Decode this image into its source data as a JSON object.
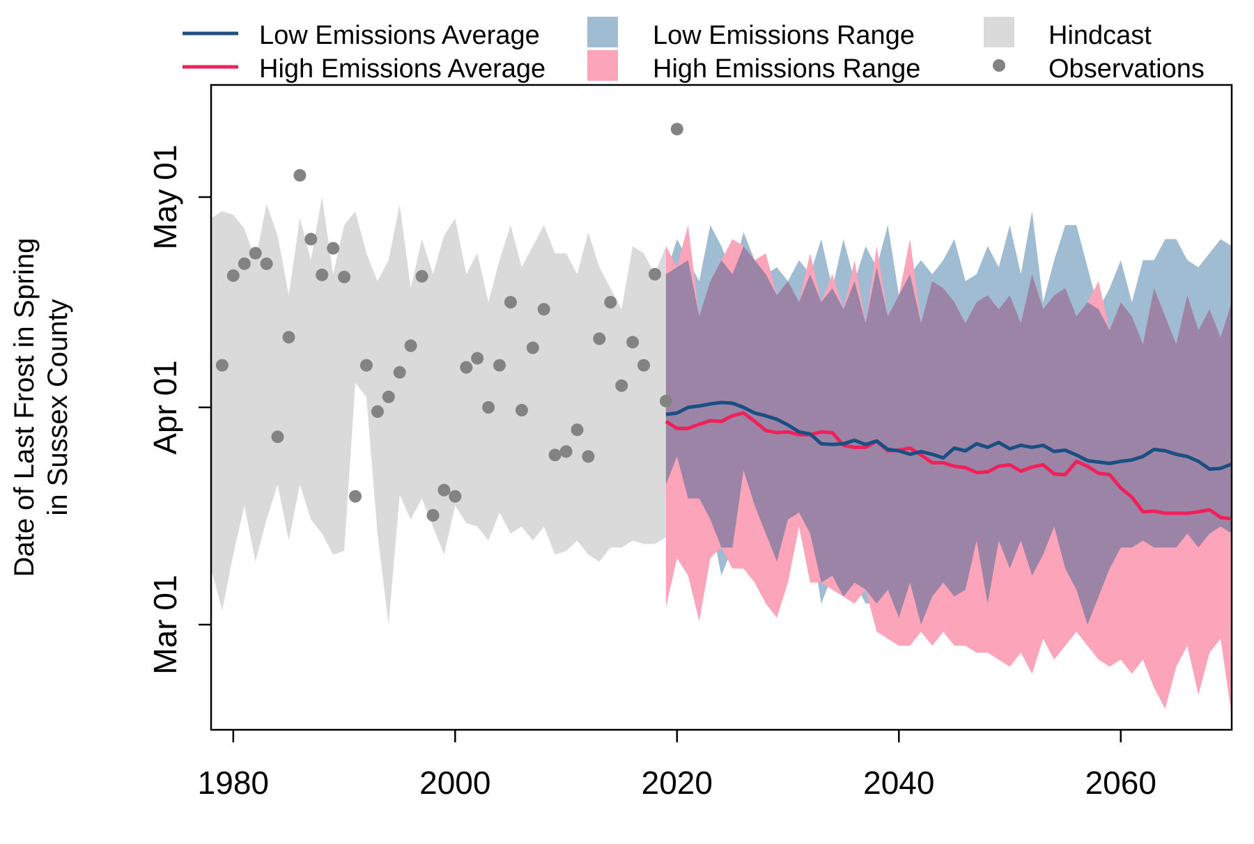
{
  "chart_data": {
    "type": "area",
    "ylabel_line1": "Date of Last Frost in Spring",
    "ylabel_line2": "in Sussex County",
    "xlabel": "",
    "xlim": [
      1978,
      2070
    ],
    "x_ticks": [
      1980,
      2000,
      2020,
      2040,
      2060
    ],
    "ylim_day_of_year": [
      45,
      137
    ],
    "y_ticks": [
      {
        "day": 60,
        "label": "Mar 01"
      },
      {
        "day": 91,
        "label": "Apr 01"
      },
      {
        "day": 121,
        "label": "May 01"
      }
    ],
    "grid": false,
    "legend_position": "top, outside",
    "legend": [
      {
        "key": "low_avg",
        "label": "Low Emissions Average",
        "kind": "line",
        "color": "#1a4f84"
      },
      {
        "key": "high_avg",
        "label": "High Emissions Average",
        "kind": "line",
        "color": "#f0215a"
      },
      {
        "key": "low_range",
        "label": "Low Emissions Range",
        "kind": "area",
        "color": "#9fbcd2"
      },
      {
        "key": "high_range",
        "label": "High Emissions Range",
        "kind": "area",
        "color": "#fca4b9"
      },
      {
        "key": "hindcast",
        "label": "Hindcast",
        "kind": "area",
        "color": "#dadada"
      },
      {
        "key": "observations",
        "label": "Observations",
        "kind": "point",
        "color": "#838383"
      }
    ],
    "colors": {
      "low_avg": "#1a4f84",
      "high_avg": "#f0215a",
      "low_range": "#9fbcd2",
      "high_range": "#fca4b9",
      "overlap": "#9c84a6",
      "hindcast": "#dadada",
      "observations": "#838383"
    },
    "hindcast": {
      "x": [
        1978,
        1979,
        1980,
        1981,
        1982,
        1983,
        1984,
        1985,
        1986,
        1987,
        1988,
        1989,
        1990,
        1991,
        1992,
        1993,
        1994,
        1995,
        1996,
        1997,
        1998,
        1999,
        2000,
        2001,
        2002,
        2003,
        2004,
        2005,
        2006,
        2007,
        2008,
        2009,
        2010,
        2011,
        2012,
        2013,
        2014,
        2015,
        2016,
        2017,
        2018,
        2019
      ],
      "upper": [
        118,
        119,
        118.5,
        116.5,
        112,
        120,
        115.5,
        107,
        118,
        112,
        121,
        110,
        117,
        119,
        113,
        109,
        112,
        120,
        108,
        115,
        110,
        115.5,
        118,
        110,
        113,
        106,
        112,
        117,
        111,
        114,
        117,
        113,
        113,
        110,
        116,
        111,
        108,
        105,
        114,
        113,
        110,
        114
      ],
      "lower": [
        68,
        62,
        70,
        77,
        69,
        75,
        80,
        72,
        80,
        75,
        73,
        70,
        70.5,
        94.5,
        92.5,
        73,
        60,
        78.5,
        75,
        78,
        74,
        70,
        77,
        74.5,
        74,
        72,
        76,
        73,
        74,
        72,
        74,
        70,
        70.5,
        72,
        70,
        69,
        71,
        71,
        72,
        71.5,
        71.5,
        72.5
      ]
    },
    "low_range": {
      "x": [
        2019,
        2020,
        2021,
        2022,
        2023,
        2024,
        2025,
        2026,
        2027,
        2028,
        2029,
        2030,
        2031,
        2032,
        2033,
        2034,
        2035,
        2036,
        2037,
        2038,
        2039,
        2040,
        2041,
        2042,
        2043,
        2044,
        2045,
        2046,
        2047,
        2048,
        2049,
        2050,
        2051,
        2052,
        2053,
        2054,
        2055,
        2056,
        2057,
        2058,
        2059,
        2060,
        2061,
        2062,
        2063,
        2064,
        2065,
        2066,
        2067,
        2068,
        2069,
        2070
      ],
      "upper": [
        110,
        115,
        112,
        109,
        117,
        114,
        110,
        116,
        112,
        110,
        111,
        109,
        112,
        110,
        115,
        108,
        115,
        109,
        114,
        111,
        117,
        107,
        110,
        112,
        110,
        112,
        115,
        109,
        110,
        114,
        111,
        117,
        110,
        119,
        106,
        112,
        117,
        117,
        111,
        105,
        108,
        112,
        106,
        112,
        112,
        115,
        115,
        112,
        111,
        113,
        115,
        114
      ],
      "lower": [
        80,
        84,
        78,
        78,
        75,
        67,
        71,
        82,
        77,
        73,
        69,
        75,
        76,
        73,
        63,
        67,
        64,
        66,
        63,
        63,
        65,
        61,
        66,
        60,
        64,
        66,
        64,
        65,
        72,
        63,
        72,
        68,
        72,
        67,
        70,
        74,
        68,
        65,
        60,
        64,
        68,
        71,
        71,
        72,
        71,
        71,
        71,
        73,
        71,
        73,
        74,
        73
      ]
    },
    "high_range": {
      "x": [
        2019,
        2020,
        2021,
        2022,
        2023,
        2024,
        2025,
        2026,
        2027,
        2028,
        2029,
        2030,
        2031,
        2032,
        2033,
        2034,
        2035,
        2036,
        2037,
        2038,
        2039,
        2040,
        2041,
        2042,
        2043,
        2044,
        2045,
        2046,
        2047,
        2048,
        2049,
        2050,
        2051,
        2052,
        2053,
        2054,
        2055,
        2056,
        2057,
        2058,
        2059,
        2060,
        2061,
        2062,
        2063,
        2064,
        2065,
        2066,
        2067,
        2068,
        2069,
        2070
      ],
      "upper": [
        114,
        111,
        117,
        104,
        109,
        112,
        115,
        114,
        112,
        113,
        107,
        109,
        106,
        113,
        106,
        110,
        105,
        112,
        103,
        114,
        104,
        107,
        115,
        103,
        109,
        108,
        106,
        103,
        106,
        107,
        105,
        107,
        103,
        110,
        105,
        107,
        108,
        104,
        106,
        109,
        102,
        106,
        104,
        100,
        108,
        104,
        100,
        107,
        102,
        105,
        101,
        106
      ],
      "lower": [
        62.5,
        69.5,
        67,
        60.5,
        69.5,
        71,
        68,
        68,
        66,
        63,
        61,
        66,
        74,
        66,
        66,
        65,
        64,
        63,
        65,
        59,
        58,
        57,
        57,
        59,
        57,
        59,
        57,
        57,
        56,
        56,
        55,
        54,
        56,
        53,
        58,
        55,
        57,
        59,
        57,
        55,
        54,
        55,
        53,
        55,
        51,
        48,
        54,
        57,
        50,
        56,
        58,
        47
      ]
    },
    "low_avg": {
      "x": [
        2019,
        2020,
        2021,
        2022,
        2023,
        2024,
        2025,
        2026,
        2027,
        2028,
        2029,
        2030,
        2031,
        2032,
        2033,
        2034,
        2035,
        2036,
        2037,
        2038,
        2039,
        2040,
        2041,
        2042,
        2043,
        2044,
        2045,
        2046,
        2047,
        2048,
        2049,
        2050,
        2051,
        2052,
        2053,
        2054,
        2055,
        2056,
        2057,
        2058,
        2059,
        2060,
        2061,
        2062,
        2063,
        2064,
        2065,
        2066,
        2067,
        2068,
        2069,
        2070
      ],
      "values": [
        90,
        90.2,
        91,
        91.2,
        91.5,
        91.7,
        91.6,
        91,
        90.2,
        89.8,
        89.3,
        88.5,
        87.5,
        87.2,
        85.8,
        85.7,
        85.8,
        86.3,
        85.7,
        86.2,
        85,
        84.8,
        84.3,
        84.7,
        84.3,
        83.8,
        85.2,
        84.8,
        85.8,
        85.3,
        86,
        85.1,
        85.6,
        85.3,
        85.6,
        84.7,
        84.9,
        84.2,
        83.4,
        83.2,
        83,
        83.3,
        83.5,
        84,
        85,
        84.8,
        84.3,
        84,
        83.3,
        82.2,
        82.3,
        82.9
      ]
    },
    "high_avg": {
      "x": [
        2019,
        2020,
        2021,
        2022,
        2023,
        2024,
        2025,
        2026,
        2027,
        2028,
        2029,
        2030,
        2031,
        2032,
        2033,
        2034,
        2035,
        2036,
        2037,
        2038,
        2039,
        2040,
        2041,
        2042,
        2043,
        2044,
        2045,
        2046,
        2047,
        2048,
        2049,
        2050,
        2051,
        2052,
        2053,
        2054,
        2055,
        2056,
        2057,
        2058,
        2059,
        2060,
        2061,
        2062,
        2063,
        2064,
        2065,
        2066,
        2067,
        2068,
        2069,
        2070
      ],
      "values": [
        89,
        88,
        88,
        88.6,
        89.1,
        89,
        89.8,
        90.2,
        89,
        87.7,
        87.4,
        87.5,
        87.1,
        87.1,
        87.5,
        87.4,
        85.6,
        85.3,
        85.3,
        86.2,
        84.8,
        84.9,
        85.2,
        84.2,
        83.1,
        83.1,
        82.6,
        82.4,
        81.7,
        81.8,
        82.6,
        82.8,
        81.9,
        82.5,
        82.8,
        81.5,
        81.4,
        83.3,
        82.6,
        81.6,
        81.4,
        79.5,
        78.2,
        76.1,
        76.2,
        75.9,
        75.9,
        75.9,
        76.1,
        76.4,
        75.3,
        75.1
      ]
    },
    "observations": {
      "x": [
        1979,
        1980,
        1981,
        1982,
        1983,
        1984,
        1985,
        1986,
        1987,
        1988,
        1989,
        1990,
        1991,
        1992,
        1993,
        1994,
        1995,
        1996,
        1997,
        1998,
        1999,
        2000,
        2001,
        2002,
        2003,
        2004,
        2005,
        2006,
        2007,
        2008,
        2009,
        2010,
        2011,
        2012,
        2013,
        2014,
        2015,
        2016,
        2017,
        2018,
        2019,
        2020
      ],
      "y": [
        97,
        109.8,
        111.5,
        113,
        111.5,
        86.8,
        101,
        124.1,
        115,
        109.9,
        113.7,
        109.6,
        78.3,
        97,
        90.4,
        92.5,
        96,
        99.8,
        109.7,
        75.6,
        79.2,
        78.3,
        96.7,
        98,
        91,
        97,
        106,
        90.6,
        99.5,
        105,
        84.2,
        84.7,
        87.8,
        84,
        100.8,
        106,
        94.1,
        100.3,
        97,
        110,
        91.9,
        130.7
      ]
    }
  }
}
